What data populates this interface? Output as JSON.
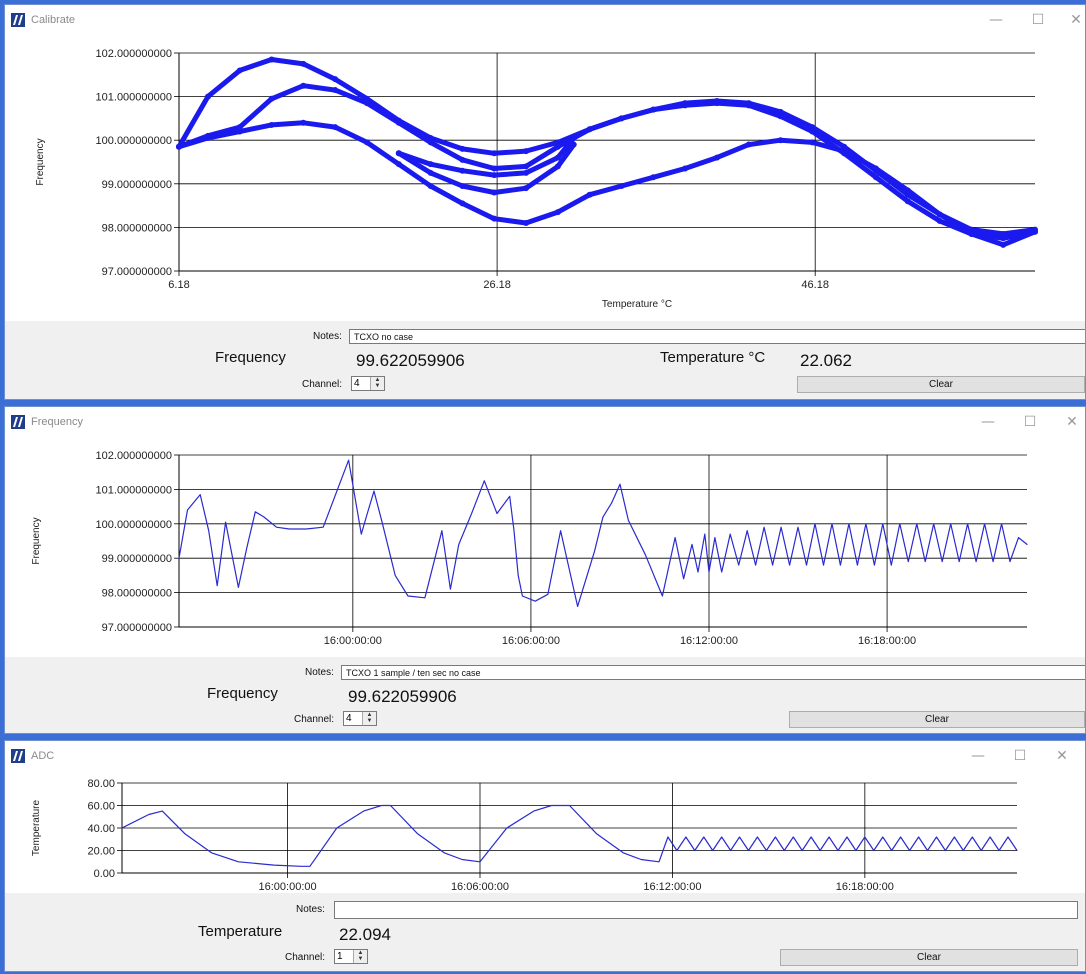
{
  "windows": [
    {
      "title": "Calibrate",
      "controls": {
        "minimize": "—",
        "maximize": "☐",
        "close": "✕"
      },
      "notes_label": "Notes:",
      "notes_value": "TCXO no case",
      "measure_label": "Frequency",
      "measure_value": "99.622059906",
      "second_label": "Temperature °C",
      "second_value": "22.062",
      "channel_label": "Channel:",
      "channel_value": "4",
      "clear_label": "Clear"
    },
    {
      "title": "Frequency",
      "controls": {
        "minimize": "—",
        "maximize": "☐",
        "close": "✕"
      },
      "notes_label": "Notes:",
      "notes_value": "TCXO 1 sample / ten sec no case",
      "measure_label": "Frequency",
      "measure_value": "99.622059906",
      "channel_label": "Channel:",
      "channel_value": "4",
      "clear_label": "Clear"
    },
    {
      "title": "ADC",
      "controls": {
        "minimize": "—",
        "maximize": "☐",
        "close": "✕"
      },
      "notes_label": "Notes:",
      "notes_value": "",
      "measure_label": "Temperature",
      "measure_value": "22.094",
      "channel_label": "Channel:",
      "channel_value": "1",
      "clear_label": "Clear"
    }
  ],
  "chart_data": [
    {
      "type": "scatter",
      "xlabel": "Temperature °C",
      "ylabel": "Frequency",
      "xlim": [
        6.18,
        60
      ],
      "ylim": [
        97,
        102
      ],
      "x_ticks": [
        "6.18",
        "26.18",
        "46.18"
      ],
      "y_ticks": [
        "97.000000000",
        "98.000000000",
        "99.000000000",
        "100.000000000",
        "101.000000000",
        "102.000000000"
      ],
      "grid": true,
      "color": "#1a1aee",
      "series": [
        {
          "x": [
            6.18,
            8,
            10,
            12,
            14,
            16,
            18,
            20,
            22,
            24,
            26,
            28,
            30,
            32,
            34,
            36,
            38,
            40,
            42,
            44,
            46,
            48,
            50,
            52,
            54,
            56,
            58,
            60
          ],
          "y": [
            99.85,
            101.0,
            101.6,
            101.85,
            101.75,
            101.4,
            100.95,
            100.45,
            100.05,
            99.8,
            99.7,
            99.75,
            99.95,
            100.25,
            100.5,
            100.7,
            100.85,
            100.9,
            100.85,
            100.65,
            100.3,
            99.85,
            99.3,
            98.75,
            98.3,
            97.95,
            97.85,
            97.95
          ]
        },
        {
          "x": [
            6.18,
            8,
            10,
            12,
            14,
            16,
            18,
            20,
            22,
            24,
            26,
            28,
            30,
            32,
            34,
            36,
            38,
            40,
            42,
            44,
            46,
            48,
            50,
            52,
            54,
            56,
            58,
            60
          ],
          "y": [
            99.85,
            100.1,
            100.3,
            100.95,
            101.25,
            101.15,
            100.85,
            100.4,
            99.95,
            99.55,
            99.35,
            99.4,
            99.85,
            100.25,
            100.5,
            100.7,
            100.8,
            100.85,
            100.8,
            100.55,
            100.2,
            99.7,
            99.15,
            98.6,
            98.15,
            97.85,
            97.75,
            97.9
          ]
        },
        {
          "x": [
            6.18,
            8,
            10,
            12,
            14,
            16,
            18,
            20,
            22,
            24,
            26,
            28,
            30,
            32,
            34,
            36,
            38,
            40,
            42,
            44,
            46,
            48,
            50,
            52,
            54,
            56,
            58,
            60
          ],
          "y": [
            99.85,
            100.05,
            100.2,
            100.35,
            100.4,
            100.3,
            99.95,
            99.45,
            98.95,
            98.55,
            98.2,
            98.1,
            98.35,
            98.75,
            98.95,
            99.15,
            99.35,
            99.6,
            99.9,
            100.0,
            99.95,
            99.75,
            99.35,
            98.85,
            98.3,
            97.85,
            97.6,
            97.9
          ]
        },
        {
          "x": [
            20,
            22,
            24,
            26,
            28,
            30,
            31
          ],
          "y": [
            99.7,
            99.45,
            99.3,
            99.2,
            99.25,
            99.6,
            100.05
          ]
        },
        {
          "x": [
            20,
            22,
            24,
            26,
            28,
            30,
            31
          ],
          "y": [
            99.7,
            99.25,
            98.95,
            98.8,
            98.9,
            99.4,
            99.9
          ]
        }
      ]
    },
    {
      "type": "line",
      "xlabel": "",
      "ylabel": "Frequency",
      "xlim": [
        0,
        1
      ],
      "ylim": [
        97,
        102
      ],
      "x_ticks": [
        "16:00:00:00",
        "16:06:00:00",
        "16:12:00:00",
        "16:18:00:00"
      ],
      "y_ticks": [
        "97.000000000",
        "98.000000000",
        "99.000000000",
        "100.000000000",
        "101.000000000",
        "102.000000000"
      ],
      "grid": true,
      "color": "#2a2ad0",
      "series": [
        {
          "x": [
            0,
            0.01,
            0.025,
            0.035,
            0.045,
            0.055,
            0.07,
            0.08,
            0.09,
            0.1,
            0.115,
            0.13,
            0.15,
            0.17,
            0.2,
            0.215,
            0.222,
            0.23,
            0.24,
            0.255,
            0.27,
            0.29,
            0.31,
            0.32,
            0.33,
            0.345,
            0.36,
            0.375,
            0.39,
            0.395,
            0.4,
            0.405,
            0.42,
            0.435,
            0.45,
            0.47,
            0.49,
            0.5,
            0.51,
            0.52,
            0.53,
            0.55,
            0.57,
            0.585,
            0.595,
            0.605,
            0.612,
            0.62,
            0.625,
            0.632,
            0.64,
            0.65,
            0.66,
            0.67,
            0.68,
            0.69,
            0.7,
            0.71,
            0.72,
            0.73,
            0.74,
            0.75,
            0.76,
            0.77,
            0.78,
            0.79,
            0.8,
            0.81,
            0.82,
            0.83,
            0.84,
            0.85,
            0.86,
            0.87,
            0.88,
            0.89,
            0.9,
            0.91,
            0.92,
            0.93,
            0.94,
            0.95,
            0.96,
            0.97,
            0.98,
            0.99,
            1.0
          ],
          "y": [
            99.0,
            100.4,
            100.85,
            99.8,
            98.2,
            100.05,
            98.15,
            99.3,
            100.35,
            100.2,
            99.9,
            99.85,
            99.85,
            99.9,
            101.85,
            99.7,
            100.3,
            100.95,
            100.0,
            98.5,
            97.9,
            97.85,
            99.8,
            98.1,
            99.4,
            100.3,
            101.25,
            100.3,
            100.8,
            99.8,
            98.5,
            97.9,
            97.75,
            97.95,
            99.8,
            97.6,
            99.2,
            100.2,
            100.6,
            101.15,
            100.1,
            99.1,
            97.9,
            99.6,
            98.4,
            99.4,
            98.6,
            99.7,
            98.6,
            99.6,
            98.6,
            99.7,
            98.8,
            99.8,
            98.8,
            99.9,
            98.8,
            99.9,
            98.8,
            99.9,
            98.8,
            100.0,
            98.8,
            100.0,
            98.8,
            100.0,
            98.8,
            100.0,
            98.8,
            100.0,
            98.8,
            100.0,
            98.9,
            100.0,
            98.9,
            100.0,
            98.9,
            100.0,
            98.9,
            100.0,
            98.9,
            100.0,
            98.9,
            100.0,
            98.9,
            99.6,
            99.4
          ]
        }
      ]
    },
    {
      "type": "line",
      "xlabel": "",
      "ylabel": "Temperature",
      "xlim": [
        0,
        1
      ],
      "ylim": [
        0,
        80
      ],
      "x_ticks": [
        "16:00:00:00",
        "16:06:00:00",
        "16:12:00:00",
        "16:18:00:00"
      ],
      "y_ticks": [
        "0.00",
        "20.00",
        "40.00",
        "60.00",
        "80.00"
      ],
      "grid": true,
      "color": "#2a2ad0",
      "series": [
        {
          "x": [
            0,
            0.03,
            0.045,
            0.07,
            0.1,
            0.13,
            0.17,
            0.2,
            0.21,
            0.24,
            0.27,
            0.29,
            0.3,
            0.33,
            0.36,
            0.38,
            0.4,
            0.43,
            0.46,
            0.48,
            0.5,
            0.53,
            0.56,
            0.58,
            0.6,
            0.61,
            0.62,
            0.63,
            0.64,
            0.65,
            0.66,
            0.67,
            0.68,
            0.69,
            0.7,
            0.71,
            0.72,
            0.73,
            0.74,
            0.75,
            0.76,
            0.77,
            0.78,
            0.79,
            0.8,
            0.81,
            0.82,
            0.83,
            0.84,
            0.85,
            0.86,
            0.87,
            0.88,
            0.89,
            0.9,
            0.91,
            0.92,
            0.93,
            0.94,
            0.95,
            0.96,
            0.97,
            0.98,
            0.99,
            1.0
          ],
          "y": [
            40,
            52,
            55,
            35,
            18,
            10,
            7,
            6,
            6,
            40,
            55,
            60,
            60,
            35,
            18,
            12,
            10,
            40,
            55,
            60,
            60,
            35,
            18,
            12,
            10,
            32,
            20,
            32,
            20,
            32,
            20,
            32,
            20,
            32,
            20,
            32,
            20,
            32,
            20,
            32,
            20,
            32,
            20,
            32,
            20,
            32,
            20,
            32,
            20,
            32,
            20,
            32,
            20,
            32,
            20,
            32,
            20,
            32,
            20,
            32,
            20,
            32,
            20,
            32,
            20
          ]
        }
      ]
    }
  ]
}
